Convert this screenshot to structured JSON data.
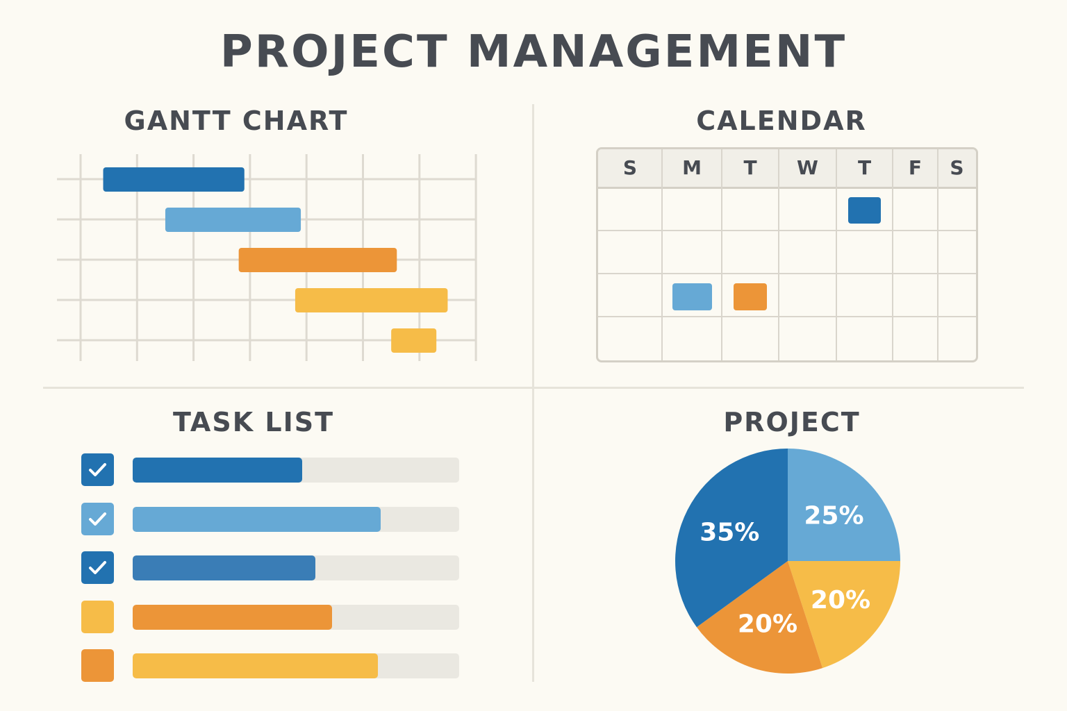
{
  "title": "PROJECT MANAGEMENT",
  "colors": {
    "dark_blue": "#2272b0",
    "light_blue": "#66a9d5",
    "mid_blue": "#3a7db6",
    "orange": "#ec9538",
    "yellow": "#f6bc48",
    "grid": "#dedad1",
    "track": "#eae8e1"
  },
  "gantt": {
    "title": "GANTT CHART",
    "tasks": [
      {
        "start": 0.4,
        "end": 2.9,
        "color": "dark_blue"
      },
      {
        "start": 1.5,
        "end": 3.9,
        "color": "light_blue"
      },
      {
        "start": 2.8,
        "end": 5.6,
        "color": "orange"
      },
      {
        "start": 3.8,
        "end": 6.5,
        "color": "yellow"
      },
      {
        "start": 5.5,
        "end": 6.3,
        "color": "yellow"
      }
    ],
    "columns": 7
  },
  "calendar": {
    "title": "CALENDAR",
    "days": [
      "S",
      "M",
      "T",
      "W",
      "T",
      "F",
      "S"
    ],
    "weeks": 4,
    "events": [
      {
        "week": 1,
        "day": 4,
        "color": "dark_blue"
      },
      {
        "week": 3,
        "day": 1,
        "color": "light_blue"
      },
      {
        "week": 3,
        "day": 2,
        "color": "orange"
      }
    ]
  },
  "task_list": {
    "title": "TASK LIST",
    "tasks": [
      {
        "checked": true,
        "check_color": "dark_blue",
        "progress": 0.52,
        "bar_color": "dark_blue"
      },
      {
        "checked": true,
        "check_color": "light_blue",
        "progress": 0.76,
        "bar_color": "light_blue"
      },
      {
        "checked": true,
        "check_color": "dark_blue",
        "progress": 0.56,
        "bar_color": "mid_blue"
      },
      {
        "checked": false,
        "check_color": "yellow",
        "progress": 0.61,
        "bar_color": "orange"
      },
      {
        "checked": false,
        "check_color": "orange",
        "progress": 0.75,
        "bar_color": "yellow"
      }
    ]
  },
  "chart_data": {
    "type": "pie",
    "title": "PROJECT",
    "slices": [
      {
        "label": "25%",
        "value": 25,
        "color": "light_blue"
      },
      {
        "label": "20%",
        "value": 20,
        "color": "yellow"
      },
      {
        "label": "20%",
        "value": 20,
        "color": "orange"
      },
      {
        "label": "35%",
        "value": 35,
        "color": "dark_blue"
      }
    ]
  }
}
